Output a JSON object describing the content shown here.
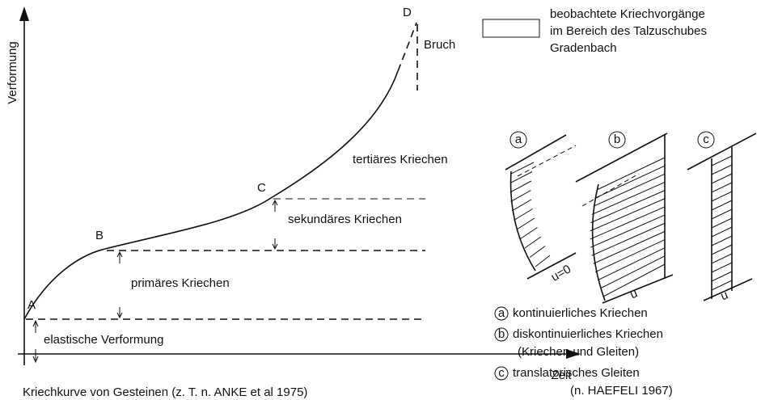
{
  "creep_curve": {
    "y_axis_label": "Verformung",
    "x_axis_label": "Zeit",
    "points": [
      "A",
      "B",
      "C",
      "D"
    ],
    "fracture": "Bruch",
    "stages": {
      "tertiary": "tertiäres Kriechen",
      "secondary": "sekundäres Kriechen",
      "primary": "primäres Kriechen",
      "elastic": "elastische Verformung"
    },
    "caption": "Kriechkurve von Gesteinen (z. T. n. ANKE et al 1975)"
  },
  "legend": {
    "lines": [
      "beobachtete Kriechvorgänge",
      "im Bereich des Talzuschubes",
      "Gradenbach"
    ]
  },
  "panels": [
    {
      "letter": "a",
      "displacement": "u=0",
      "description": [
        "kontinuierliches Kriechen"
      ]
    },
    {
      "letter": "b",
      "displacement": "u",
      "description": [
        "diskontinuierliches Kriechen",
        "(Kriechen und Gleiten)"
      ]
    },
    {
      "letter": "c",
      "displacement": "u",
      "description": [
        "translatorisches Gleiten"
      ]
    }
  ],
  "source": "(n. HAEFELI 1967)"
}
